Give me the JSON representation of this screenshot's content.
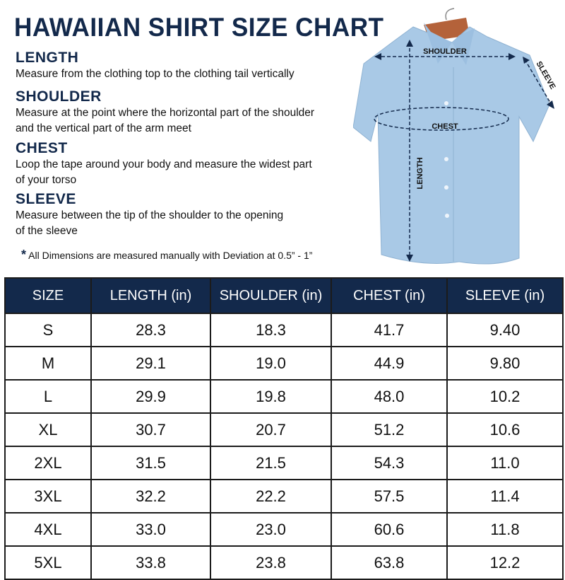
{
  "title": "HAWAIIAN SHIRT SIZE CHART",
  "sections": [
    {
      "heading": "LENGTH",
      "lines": [
        "Measure from the clothing top to the clothing tail vertically"
      ]
    },
    {
      "heading": "SHOULDER",
      "lines": [
        "Measure at the point where the horizontal part of the shoulder",
        "and the vertical part of the arm meet"
      ]
    },
    {
      "heading": "CHEST",
      "lines": [
        "Loop the tape around your body and measure the widest part",
        "of your torso"
      ]
    },
    {
      "heading": "SLEEVE",
      "lines": [
        "Measure between the tip of the shoulder to the opening",
        "of the sleeve"
      ]
    }
  ],
  "note": {
    "mark": "*",
    "text": "All Dimensions are measured manually with Deviation at 0.5” - 1”"
  },
  "diagram": {
    "shoulder": "SHOULDER",
    "chest": "CHEST",
    "length": "LENGTH",
    "sleeve": "SLEEVE",
    "shirt_color": "#a9c9e6",
    "arrow_color": "#13294b"
  },
  "table": {
    "headers": [
      "SIZE",
      "LENGTH (in)",
      "SHOULDER (in)",
      "CHEST (in)",
      "SLEEVE (in)"
    ],
    "rows": [
      [
        "S",
        "28.3",
        "18.3",
        "41.7",
        "9.40"
      ],
      [
        "M",
        "29.1",
        "19.0",
        "44.9",
        "9.80"
      ],
      [
        "L",
        "29.9",
        "19.8",
        "48.0",
        "10.2"
      ],
      [
        "XL",
        "30.7",
        "20.7",
        "51.2",
        "10.6"
      ],
      [
        "2XL",
        "31.5",
        "21.5",
        "54.3",
        "11.0"
      ],
      [
        "3XL",
        "32.2",
        "22.2",
        "57.5",
        "11.4"
      ],
      [
        "4XL",
        "33.0",
        "23.0",
        "60.6",
        "11.8"
      ],
      [
        "5XL",
        "33.8",
        "23.8",
        "63.8",
        "12.2"
      ]
    ]
  },
  "colors": {
    "header_bg": "#13294b",
    "heading_text": "#13294b"
  }
}
